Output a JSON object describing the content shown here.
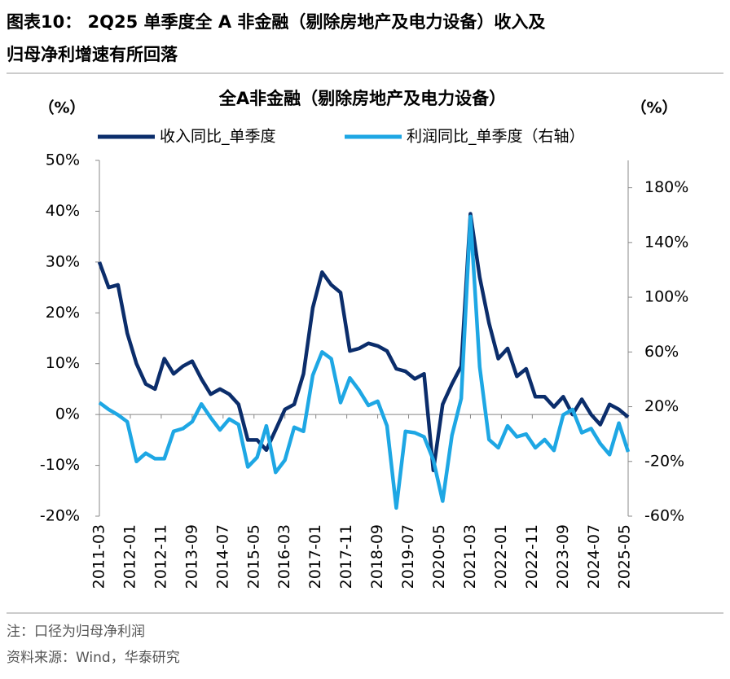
{
  "header": {
    "title": "图表10：  2Q25 单季度全 A 非金融（剔除房地产及电力设备）收入及归母净利增速有所回落"
  },
  "chart_data": {
    "type": "line",
    "title": "全A非金融（剔除房地产及电力设备）",
    "y_label": "（%）",
    "y2_label": "（%）",
    "x": [
      "2011-03",
      "2011-06",
      "2011-09",
      "2011-12",
      "2012-03",
      "2012-06",
      "2012-09",
      "2012-12",
      "2013-03",
      "2013-06",
      "2013-09",
      "2013-12",
      "2014-03",
      "2014-06",
      "2014-09",
      "2014-12",
      "2015-03",
      "2015-06",
      "2015-09",
      "2015-12",
      "2016-03",
      "2016-06",
      "2016-09",
      "2016-12",
      "2017-03",
      "2017-06",
      "2017-09",
      "2017-12",
      "2018-03",
      "2018-06",
      "2018-09",
      "2018-12",
      "2019-03",
      "2019-06",
      "2019-09",
      "2019-12",
      "2020-03",
      "2020-06",
      "2020-09",
      "2020-12",
      "2021-03",
      "2021-06",
      "2021-09",
      "2021-12",
      "2022-03",
      "2022-06",
      "2022-09",
      "2022-12",
      "2023-03",
      "2023-06",
      "2023-09",
      "2023-12",
      "2024-03",
      "2024-06",
      "2024-09",
      "2024-12",
      "2025-03",
      "2025-06"
    ],
    "series": [
      {
        "name": "收入同比_单季度",
        "color": "#0b2d6b",
        "values": [
          30,
          25,
          25.5,
          16,
          10,
          6,
          5,
          11,
          8,
          9.5,
          10.5,
          7,
          4,
          5,
          4,
          2,
          -5,
          -5,
          -7,
          -3,
          1,
          2,
          8,
          21,
          28,
          25.5,
          24,
          12.5,
          13,
          14,
          13.5,
          12.5,
          9,
          8.5,
          7,
          8,
          -11,
          2,
          6,
          9.5,
          39.5,
          27,
          18,
          11,
          13,
          7.5,
          9,
          3.5,
          3.5,
          1.5,
          3.5,
          0,
          3,
          0,
          -2,
          2,
          1,
          -0.5
        ]
      },
      {
        "name": "利润同比_单季度（右轴）",
        "color": "#1ea7e4",
        "axis": "y2",
        "values": [
          23,
          18,
          14,
          9,
          -20,
          -14,
          -18,
          -18,
          2,
          4,
          9,
          22,
          12,
          3,
          11,
          7,
          -24,
          -17,
          6,
          -28,
          -19,
          5,
          2,
          43,
          60,
          55,
          23,
          41,
          32,
          21,
          24,
          6,
          -54,
          2,
          1,
          -2,
          -19,
          -49,
          -1,
          26,
          159,
          49,
          -4,
          -10,
          6,
          -2,
          0,
          -10,
          -4,
          -12,
          14,
          18,
          1,
          4,
          -7,
          -15,
          8,
          -13
        ]
      }
    ],
    "xlim": [
      "2011-03",
      "2025-06"
    ],
    "xticks": [
      "2011-03",
      "2012-01",
      "2012-11",
      "2013-09",
      "2014-07",
      "2015-05",
      "2016-03",
      "2017-01",
      "2017-11",
      "2018-09",
      "2019-07",
      "2020-05",
      "2021-03",
      "2022-01",
      "2022-11",
      "2023-09",
      "2024-07",
      "2025-05"
    ],
    "ylim": [
      -20,
      50
    ],
    "yticks": [
      {
        "value": -20,
        "label": "-20%"
      },
      {
        "value": -10,
        "label": "-10%"
      },
      {
        "value": 0,
        "label": "0%"
      },
      {
        "value": 10,
        "label": "10%"
      },
      {
        "value": 20,
        "label": "20%"
      },
      {
        "value": 30,
        "label": "30%"
      },
      {
        "value": 40,
        "label": "40%"
      },
      {
        "value": 50,
        "label": "50%"
      }
    ],
    "y2lim": [
      -60,
      200
    ],
    "y2ticks": [
      {
        "value": -60,
        "label": "-60%"
      },
      {
        "value": -20,
        "label": "-20%"
      },
      {
        "value": 20,
        "label": "20%"
      },
      {
        "value": 60,
        "label": "60%"
      },
      {
        "value": 100,
        "label": "100%"
      },
      {
        "value": 140,
        "label": "140%"
      },
      {
        "value": 180,
        "label": "180%"
      }
    ],
    "grid": false
  },
  "footer": {
    "note": "注：口径为归母净利润",
    "source": "资料来源：Wind，华泰研究"
  }
}
